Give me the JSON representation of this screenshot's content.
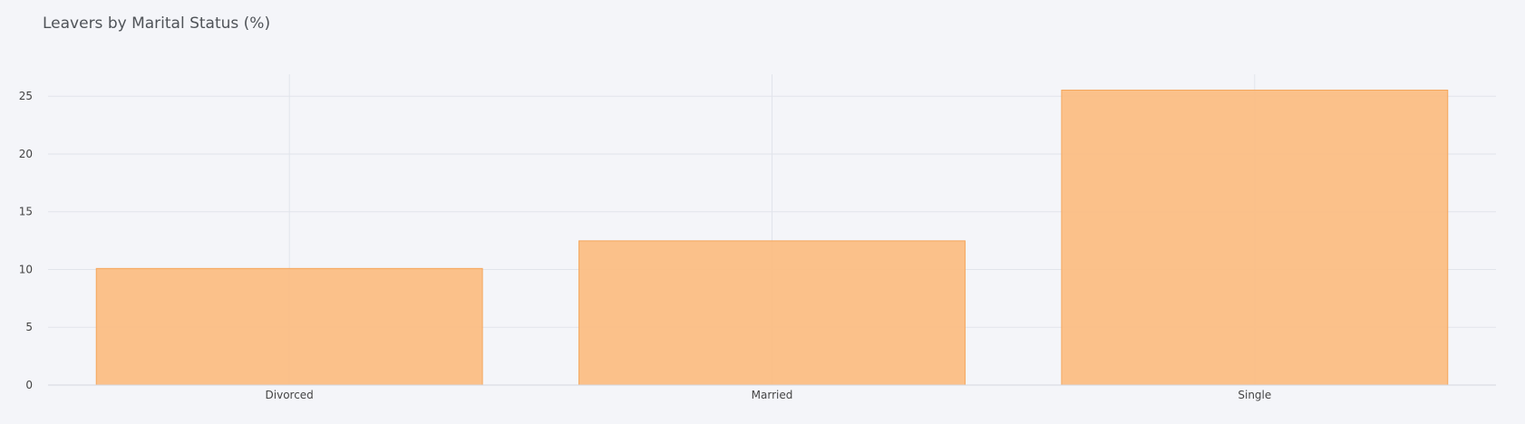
{
  "chart_data": {
    "type": "bar",
    "title": "Leavers by Marital Status (%)",
    "xlabel": "",
    "ylabel": "",
    "categories": [
      "Divorced",
      "Married",
      "Single"
    ],
    "values": [
      10.09,
      12.48,
      25.53
    ],
    "ylim": [
      0,
      26.9
    ],
    "yticks": [
      0,
      5,
      10,
      15,
      20,
      25
    ],
    "grid": true,
    "legend": "none",
    "colors": {
      "bar_fill": "#fbbe84",
      "bar_stroke": "#f5a65c",
      "background": "#f4f5f9",
      "grid": "#e1e4eb"
    }
  }
}
